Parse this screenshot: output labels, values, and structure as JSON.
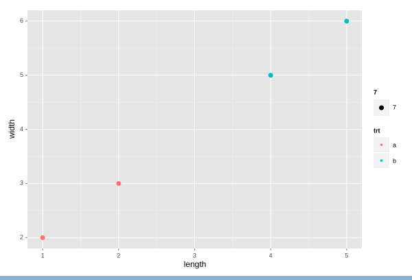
{
  "chart_data": {
    "type": "scatter",
    "xlabel": "length",
    "ylabel": "width",
    "series": [
      {
        "name": "a",
        "color": "#F8766D",
        "x": [
          1,
          2
        ],
        "values": [
          2,
          3
        ]
      },
      {
        "name": "b",
        "color": "#00BFC4",
        "x": [
          4,
          5
        ],
        "values": [
          5,
          6
        ]
      }
    ],
    "legend_title": "trt",
    "size_legend": {
      "title": "7",
      "label": "7",
      "color": "#000000"
    },
    "xlim": [
      0.8,
      5.2
    ],
    "xticks": [
      1,
      2,
      3,
      4,
      5
    ],
    "ylim": [
      1.8,
      6.2
    ],
    "yticks": [
      2,
      3,
      4,
      5,
      6
    ],
    "grid": true,
    "legend": "right"
  }
}
